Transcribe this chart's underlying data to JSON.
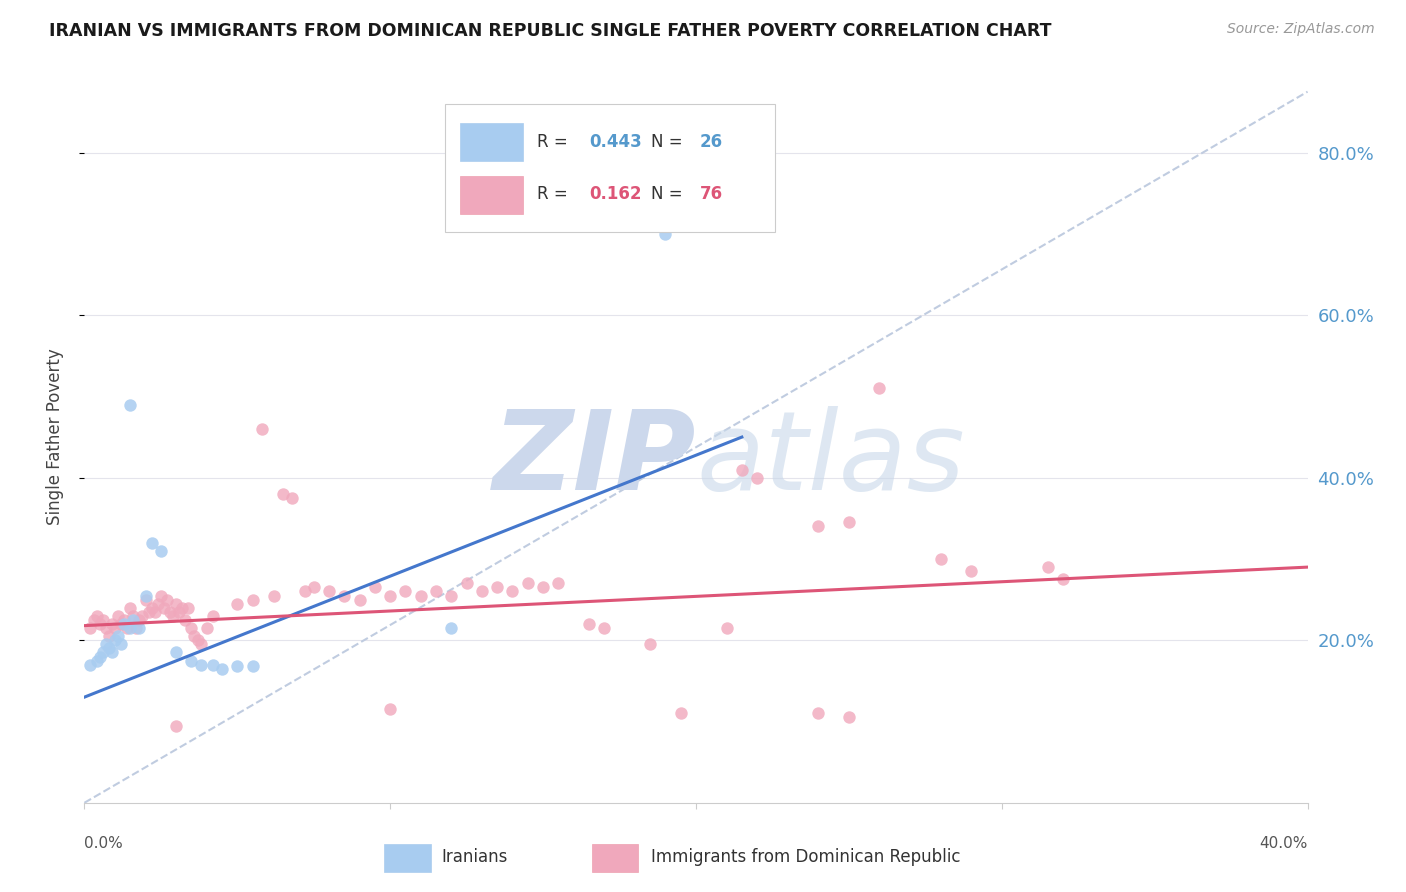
{
  "title": "IRANIAN VS IMMIGRANTS FROM DOMINICAN REPUBLIC SINGLE FATHER POVERTY CORRELATION CHART",
  "source": "Source: ZipAtlas.com",
  "ylabel": "Single Father Poverty",
  "y_tick_labels": [
    "20.0%",
    "40.0%",
    "60.0%",
    "80.0%"
  ],
  "y_tick_vals": [
    0.2,
    0.4,
    0.6,
    0.8
  ],
  "xlim": [
    0.0,
    0.4
  ],
  "ylim": [
    0.0,
    0.9
  ],
  "iranian_scatter": [
    [
      0.002,
      0.17
    ],
    [
      0.004,
      0.175
    ],
    [
      0.005,
      0.18
    ],
    [
      0.006,
      0.185
    ],
    [
      0.007,
      0.195
    ],
    [
      0.008,
      0.19
    ],
    [
      0.009,
      0.185
    ],
    [
      0.01,
      0.2
    ],
    [
      0.011,
      0.205
    ],
    [
      0.012,
      0.195
    ],
    [
      0.013,
      0.22
    ],
    [
      0.015,
      0.215
    ],
    [
      0.016,
      0.225
    ],
    [
      0.018,
      0.215
    ],
    [
      0.02,
      0.255
    ],
    [
      0.022,
      0.32
    ],
    [
      0.025,
      0.31
    ],
    [
      0.03,
      0.185
    ],
    [
      0.035,
      0.175
    ],
    [
      0.038,
      0.17
    ],
    [
      0.042,
      0.17
    ],
    [
      0.045,
      0.165
    ],
    [
      0.05,
      0.168
    ],
    [
      0.055,
      0.168
    ],
    [
      0.015,
      0.49
    ],
    [
      0.12,
      0.215
    ],
    [
      0.19,
      0.7
    ]
  ],
  "dominican_scatter": [
    [
      0.002,
      0.215
    ],
    [
      0.003,
      0.225
    ],
    [
      0.004,
      0.23
    ],
    [
      0.005,
      0.22
    ],
    [
      0.006,
      0.225
    ],
    [
      0.007,
      0.215
    ],
    [
      0.008,
      0.205
    ],
    [
      0.009,
      0.22
    ],
    [
      0.01,
      0.215
    ],
    [
      0.011,
      0.23
    ],
    [
      0.012,
      0.22
    ],
    [
      0.013,
      0.225
    ],
    [
      0.014,
      0.215
    ],
    [
      0.015,
      0.24
    ],
    [
      0.016,
      0.23
    ],
    [
      0.017,
      0.215
    ],
    [
      0.018,
      0.225
    ],
    [
      0.019,
      0.23
    ],
    [
      0.02,
      0.25
    ],
    [
      0.021,
      0.235
    ],
    [
      0.022,
      0.24
    ],
    [
      0.023,
      0.235
    ],
    [
      0.024,
      0.245
    ],
    [
      0.025,
      0.255
    ],
    [
      0.026,
      0.24
    ],
    [
      0.027,
      0.25
    ],
    [
      0.028,
      0.235
    ],
    [
      0.029,
      0.23
    ],
    [
      0.03,
      0.245
    ],
    [
      0.031,
      0.235
    ],
    [
      0.032,
      0.24
    ],
    [
      0.033,
      0.225
    ],
    [
      0.034,
      0.24
    ],
    [
      0.035,
      0.215
    ],
    [
      0.036,
      0.205
    ],
    [
      0.037,
      0.2
    ],
    [
      0.038,
      0.195
    ],
    [
      0.04,
      0.215
    ],
    [
      0.042,
      0.23
    ],
    [
      0.05,
      0.245
    ],
    [
      0.055,
      0.25
    ],
    [
      0.058,
      0.46
    ],
    [
      0.062,
      0.255
    ],
    [
      0.065,
      0.38
    ],
    [
      0.068,
      0.375
    ],
    [
      0.072,
      0.26
    ],
    [
      0.075,
      0.265
    ],
    [
      0.08,
      0.26
    ],
    [
      0.085,
      0.255
    ],
    [
      0.09,
      0.25
    ],
    [
      0.095,
      0.265
    ],
    [
      0.1,
      0.255
    ],
    [
      0.105,
      0.26
    ],
    [
      0.11,
      0.255
    ],
    [
      0.115,
      0.26
    ],
    [
      0.12,
      0.255
    ],
    [
      0.125,
      0.27
    ],
    [
      0.13,
      0.26
    ],
    [
      0.135,
      0.265
    ],
    [
      0.14,
      0.26
    ],
    [
      0.145,
      0.27
    ],
    [
      0.15,
      0.265
    ],
    [
      0.155,
      0.27
    ],
    [
      0.165,
      0.22
    ],
    [
      0.17,
      0.215
    ],
    [
      0.185,
      0.195
    ],
    [
      0.21,
      0.215
    ],
    [
      0.215,
      0.41
    ],
    [
      0.22,
      0.4
    ],
    [
      0.24,
      0.34
    ],
    [
      0.25,
      0.345
    ],
    [
      0.26,
      0.51
    ],
    [
      0.28,
      0.3
    ],
    [
      0.29,
      0.285
    ],
    [
      0.315,
      0.29
    ],
    [
      0.32,
      0.275
    ],
    [
      0.03,
      0.095
    ],
    [
      0.1,
      0.115
    ],
    [
      0.195,
      0.11
    ],
    [
      0.24,
      0.11
    ],
    [
      0.25,
      0.105
    ]
  ],
  "iranian_line_x": [
    0.0,
    0.215
  ],
  "iranian_line_y": [
    0.13,
    0.45
  ],
  "dominican_line_x": [
    0.0,
    0.4
  ],
  "dominican_line_y": [
    0.218,
    0.29
  ],
  "diagonal_line_x": [
    0.0,
    0.4
  ],
  "diagonal_line_y": [
    0.0,
    0.875
  ],
  "scatter_blue_color": "#a8ccf0",
  "scatter_pink_color": "#f0a8bc",
  "line_blue_color": "#4477cc",
  "line_pink_color": "#dd5577",
  "diagonal_color": "#c0cce0",
  "background_color": "#ffffff",
  "grid_color": "#e4e4ec"
}
